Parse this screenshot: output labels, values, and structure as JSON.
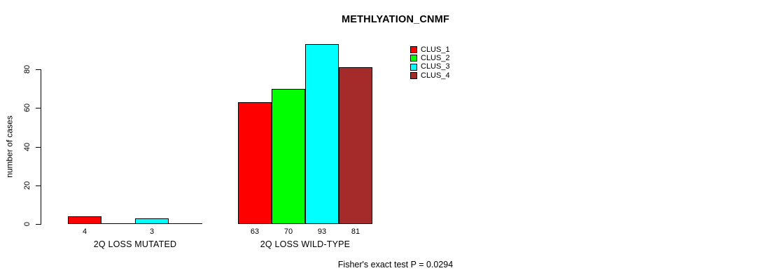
{
  "chart_data": {
    "type": "bar",
    "title": "METHLYATION_CNMF",
    "ylabel": "number of cases",
    "xlabel": "",
    "yticks": [
      0,
      20,
      40,
      60,
      80
    ],
    "ylim": [
      0,
      93
    ],
    "grid": false,
    "legend_position": "top-right",
    "series": [
      {
        "name": "CLUS_1",
        "color": "#ff0000"
      },
      {
        "name": "CLUS_2",
        "color": "#00ff00"
      },
      {
        "name": "CLUS_3",
        "color": "#00ffff"
      },
      {
        "name": "CLUS_4",
        "color": "#a52a2a"
      }
    ],
    "groups": [
      {
        "label": "2Q LOSS MUTATED",
        "values": [
          4,
          0,
          3,
          0
        ],
        "value_labels": [
          "4",
          "",
          "3",
          ""
        ]
      },
      {
        "label": "2Q LOSS WILD-TYPE",
        "values": [
          63,
          70,
          93,
          81
        ],
        "value_labels": [
          "63",
          "70",
          "93",
          "81"
        ]
      }
    ],
    "annotation": "Fisher's exact test P = 0.0294",
    "axis_color": "#000000",
    "bar_border_color": "#000000"
  }
}
